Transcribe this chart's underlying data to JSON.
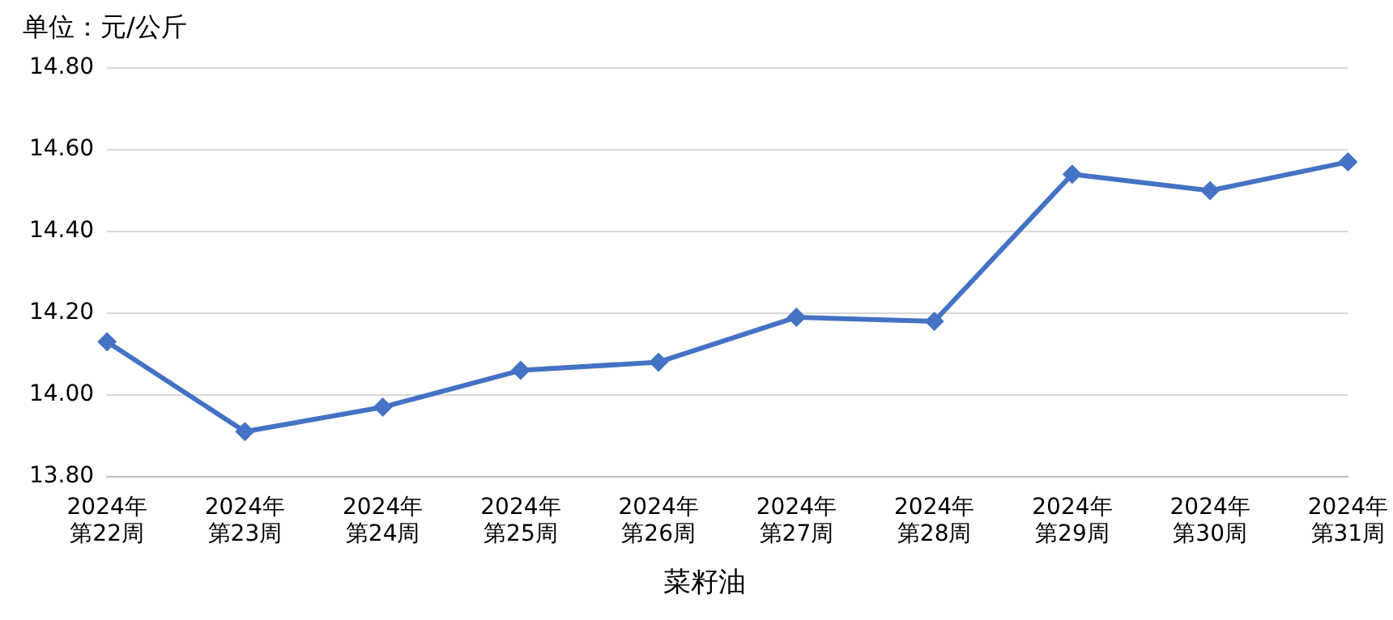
{
  "chart_data": {
    "type": "line",
    "ylabel": "单位：元/公斤",
    "categories": [
      "2024年第22周",
      "2024年第23周",
      "2024年第24周",
      "2024年第25周",
      "2024年第26周",
      "2024年第27周",
      "2024年第28周",
      "2024年第29周",
      "2024年第30周",
      "2024年第31周"
    ],
    "series": [
      {
        "name": "菜籽油",
        "color": "#4472c4",
        "values": [
          14.13,
          13.91,
          13.97,
          14.06,
          14.08,
          14.19,
          14.18,
          14.54,
          14.5,
          14.57
        ]
      }
    ],
    "ylim": [
      13.8,
      14.8
    ],
    "yticks": [
      {
        "value": 13.8,
        "label": "13.80"
      },
      {
        "value": 14.0,
        "label": "14.00"
      },
      {
        "value": 14.2,
        "label": "14.20"
      },
      {
        "value": 14.4,
        "label": "14.40"
      },
      {
        "value": 14.6,
        "label": "14.60"
      },
      {
        "value": 14.8,
        "label": "14.80"
      }
    ],
    "grid": "y",
    "legend": "bottom",
    "marker": "diamond",
    "line_style": "solid"
  }
}
